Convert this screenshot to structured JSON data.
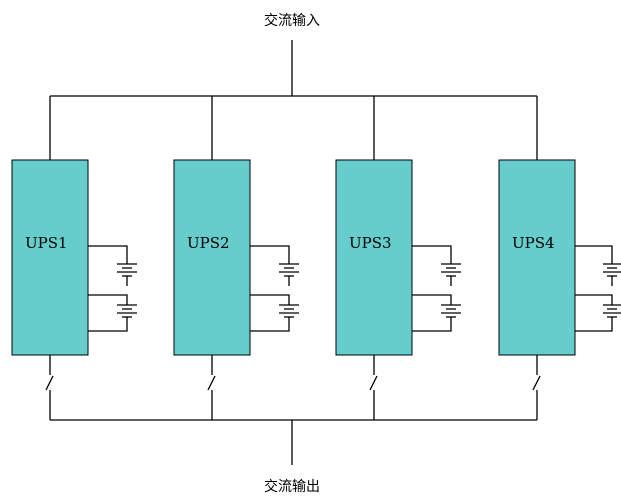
{
  "diagram": {
    "input_label": "交流输入",
    "output_label": "交流输出",
    "units": [
      {
        "label": "UPS1"
      },
      {
        "label": "UPS2"
      },
      {
        "label": "UPS3"
      },
      {
        "label": "UPS4"
      }
    ],
    "colors": {
      "ups_fill": "#66cccc",
      "line": "#000000"
    }
  }
}
